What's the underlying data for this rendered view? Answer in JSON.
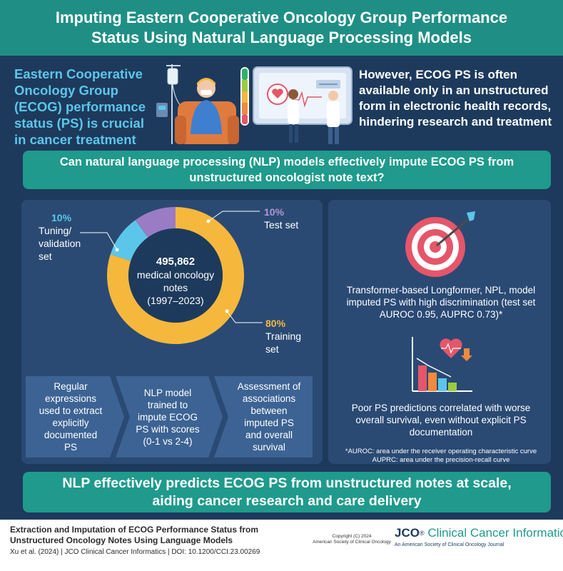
{
  "header": {
    "title_line1": "Imputing Eastern Cooperative Oncology Group Performance",
    "title_line2": "Status Using Natural Language Processing Models"
  },
  "intro": {
    "left_text": "Eastern Cooperative Oncology Group (ECOG) performance status (PS) is crucial in cancer treatment",
    "right_text": "However, ECOG PS is often available only in an unstructured form in electronic health records, hindering research and treatment"
  },
  "question": {
    "line1": "Can natural language processing (NLP) models effectively impute ECOG PS from",
    "line2": "unstructured oncologist note text?"
  },
  "dataset": {
    "center_number": "495,862",
    "center_label": "medical oncology notes",
    "center_years": "(1997–2023)",
    "segments": [
      {
        "pct": "10%",
        "label": "Tuning/ validation set",
        "fraction": 0.1,
        "color": "#5cc6ea"
      },
      {
        "pct": "10%",
        "label": "Test set",
        "fraction": 0.1,
        "color": "#9a7cc4"
      },
      {
        "pct": "80%",
        "label": "Training set",
        "fraction": 0.8,
        "color": "#f5b83d"
      }
    ]
  },
  "steps": [
    {
      "text": "Regular expressions used to extract explicitly documented PS"
    },
    {
      "text": "NLP model trained to impute ECOG PS with scores (0-1 vs 2-4)"
    },
    {
      "text": "Assessment of associations between imputed PS and overall survival"
    }
  ],
  "results": {
    "finding1": "Transformer-based Longformer, NPL, model imputed PS with high discrimination (test set AUROC 0.95, AUPRC 0.73)*",
    "finding2": "Poor PS predictions correlated with worse overall survival, even without explicit PS documentation",
    "footnote_line1": "*AUROC: area under the receiver operating characteristic curve",
    "footnote_line2": "AUPRC: area under the precision-recall curve"
  },
  "conclusion": {
    "line1": "NLP effectively predicts ECOG PS from unstructured notes at scale,",
    "line2": "aiding cancer research and care delivery"
  },
  "footer": {
    "article_title": "Extraction and Imputation of ECOG Performance Status from Unstructured Oncology Notes Using Language Models",
    "citation": "Xu et al. (2024)  |  JCO Clinical Cancer Informatics  |  DOI: 10.1200/CCI.23.00269",
    "copyright_line1": "Copyright (C) 2024",
    "copyright_line2": "American Society of Clinical Oncology",
    "journal_mark": "JCO",
    "journal_name": "Clinical Cancer Informatics",
    "journal_sub": "An American Society of Clinical Oncology Journal"
  },
  "colors": {
    "navy": "#1d3a5c",
    "panel": "#2a4a74",
    "teal": "#1f9a8c",
    "light_blue": "#5cc6ea",
    "purple": "#9a7cc4",
    "yellow": "#f5b83d"
  }
}
